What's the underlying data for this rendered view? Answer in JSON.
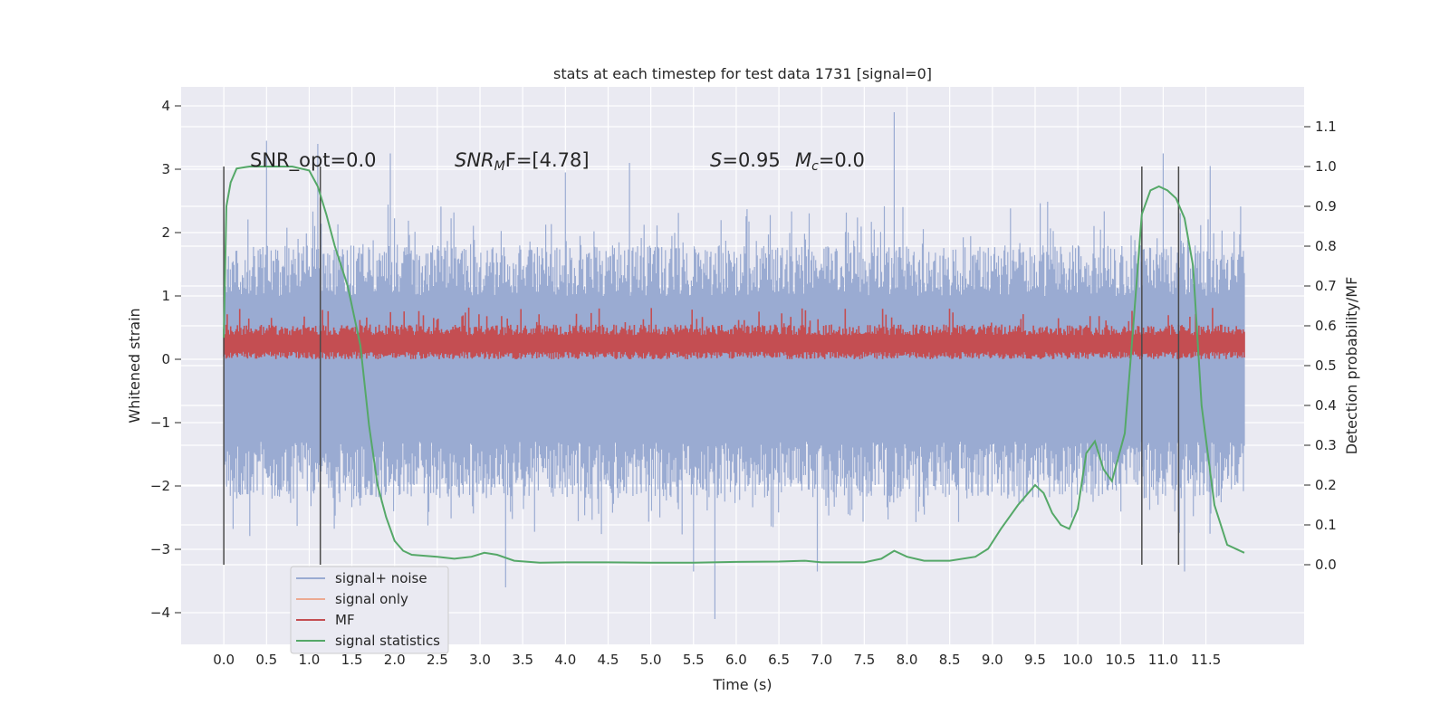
{
  "chart_data": {
    "type": "line",
    "title": "stats at each timestep for test data 1731 [signal=0]",
    "xlabel": "Time (s)",
    "ylabel_left": "Whitened strain",
    "ylabel_right": "Detection probability/MF",
    "xlim": [
      -0.5,
      12.65
    ],
    "ylim_left": [
      -4.5,
      4.3
    ],
    "ylim_right": [
      -0.2,
      1.2
    ],
    "xticks": [
      "0.0",
      "0.5",
      "1.0",
      "1.5",
      "2.0",
      "2.5",
      "3.0",
      "3.5",
      "4.0",
      "4.5",
      "5.0",
      "5.5",
      "6.0",
      "6.5",
      "7.0",
      "7.5",
      "8.0",
      "8.5",
      "9.0",
      "9.5",
      "10.0",
      "10.5",
      "11.0",
      "11.5"
    ],
    "yticks_left": [
      "4",
      "3",
      "2",
      "1",
      "0",
      "−1",
      "−2",
      "−3",
      "−4"
    ],
    "yticks_right": [
      "1.1",
      "1.0",
      "0.9",
      "0.8",
      "0.7",
      "0.6",
      "0.5",
      "0.4",
      "0.3",
      "0.2",
      "0.1",
      "0.0"
    ],
    "grid": true,
    "legend_placement": "lower-left",
    "legend": [
      "signal+ noise",
      "signal only",
      "MF",
      "signal statistics"
    ],
    "colors": {
      "signal_noise": "#9aabd2",
      "signal_only": "#ecaa92",
      "mf": "#c44e52",
      "statistics": "#55a868",
      "vline": "#4a4a4a",
      "background": "#eaeaf2"
    },
    "annotations": {
      "snr_opt": "SNR_opt=0.0",
      "snr_mf_base": "SNR",
      "snr_mf_sub": "M",
      "snr_mf_rest": "F=[4.78]",
      "s_base": "S",
      "s_rest": "=0.95",
      "mc_base": "M",
      "mc_sub": "c",
      "mc_rest": "=0.0"
    },
    "signal_noise_envelope": {
      "x_range": [
        0.0,
        11.95
      ],
      "upper_typical": 1.8,
      "lower_typical": -2.2,
      "peaks": [
        {
          "x": 0.5,
          "y": 3.45
        },
        {
          "x": 1.1,
          "y": 3.4
        },
        {
          "x": 1.95,
          "y": 3.25
        },
        {
          "x": 4.0,
          "y": 2.95
        },
        {
          "x": 4.75,
          "y": 3.1
        },
        {
          "x": 7.85,
          "y": 3.9
        },
        {
          "x": 11.0,
          "y": 3.25
        },
        {
          "x": 11.55,
          "y": 3.05
        },
        {
          "x": 3.3,
          "y": -3.6
        },
        {
          "x": 5.75,
          "y": -4.1
        },
        {
          "x": 11.25,
          "y": -3.35
        },
        {
          "x": 5.5,
          "y": -3.35
        },
        {
          "x": 6.95,
          "y": -3.35
        }
      ]
    },
    "mf_band": {
      "x_range": [
        0.0,
        11.95
      ],
      "lower": 0.0,
      "upper": 0.55,
      "spike_max": 0.82
    },
    "vlines": {
      "x": [
        0.0,
        1.13,
        10.75,
        11.18
      ],
      "y_range": [
        -3.2,
        3.05
      ]
    },
    "signal_statistics": {
      "x": [
        0.0,
        0.03,
        0.08,
        0.15,
        0.3,
        0.5,
        0.8,
        1.0,
        1.1,
        1.2,
        1.3,
        1.45,
        1.6,
        1.7,
        1.8,
        1.9,
        2.0,
        2.1,
        2.2,
        2.5,
        2.7,
        2.9,
        3.05,
        3.2,
        3.4,
        3.7,
        4.0,
        4.5,
        5.0,
        5.5,
        6.0,
        6.5,
        6.8,
        7.0,
        7.5,
        7.7,
        7.85,
        8.0,
        8.2,
        8.5,
        8.8,
        8.95,
        9.1,
        9.3,
        9.5,
        9.6,
        9.7,
        9.8,
        9.9,
        10.0,
        10.1,
        10.2,
        10.3,
        10.4,
        10.55,
        10.65,
        10.75,
        10.85,
        10.95,
        11.05,
        11.15,
        11.25,
        11.35,
        11.45,
        11.6,
        11.75,
        11.95
      ],
      "y": [
        0.57,
        0.9,
        0.96,
        0.995,
        1.0,
        1.0,
        1.0,
        0.99,
        0.95,
        0.88,
        0.8,
        0.7,
        0.55,
        0.35,
        0.2,
        0.12,
        0.06,
        0.035,
        0.025,
        0.02,
        0.015,
        0.02,
        0.03,
        0.025,
        0.01,
        0.005,
        0.006,
        0.006,
        0.005,
        0.005,
        0.007,
        0.008,
        0.01,
        0.006,
        0.006,
        0.015,
        0.035,
        0.02,
        0.01,
        0.01,
        0.02,
        0.04,
        0.09,
        0.15,
        0.2,
        0.18,
        0.13,
        0.1,
        0.09,
        0.14,
        0.28,
        0.31,
        0.24,
        0.21,
        0.33,
        0.6,
        0.88,
        0.94,
        0.95,
        0.94,
        0.92,
        0.87,
        0.75,
        0.4,
        0.15,
        0.05,
        0.03
      ]
    }
  }
}
